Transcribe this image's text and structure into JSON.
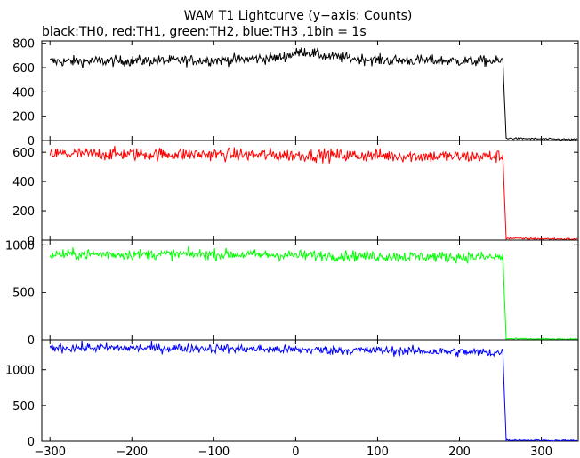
{
  "title": "WAM T1 Lightcurve (y−axis: Counts)",
  "subtitle": "black:TH0, red:TH1, green:TH2, blue:TH3 ,1bin = 1s",
  "chart_data": [
    {
      "type": "line",
      "series": [
        {
          "name": "TH0",
          "color": "#000000"
        }
      ],
      "xlim": [
        -310,
        345
      ],
      "ylim": [
        0,
        820
      ],
      "yticks": [
        0,
        200,
        400,
        600,
        800
      ],
      "ytick_labels": [
        "0",
        "200",
        "400",
        "600",
        "800"
      ],
      "level_profile": [
        [
          -300,
          650
        ],
        [
          -200,
          655
        ],
        [
          -100,
          660
        ],
        [
          -20,
          680
        ],
        [
          10,
          735
        ],
        [
          40,
          690
        ],
        [
          100,
          662
        ],
        [
          200,
          655
        ],
        [
          250,
          652
        ],
        [
          253,
          652
        ],
        [
          257,
          18
        ],
        [
          345,
          8
        ]
      ],
      "noise": 22
    },
    {
      "type": "line",
      "series": [
        {
          "name": "TH1",
          "color": "#ff0000"
        }
      ],
      "xlim": [
        -310,
        345
      ],
      "ylim": [
        0,
        680
      ],
      "yticks": [
        0,
        200,
        400,
        600
      ],
      "ytick_labels": [
        "0",
        "200",
        "400",
        "600"
      ],
      "level_profile": [
        [
          -300,
          590
        ],
        [
          -100,
          585
        ],
        [
          0,
          580
        ],
        [
          100,
          578
        ],
        [
          200,
          570
        ],
        [
          253,
          572
        ],
        [
          257,
          12
        ],
        [
          345,
          6
        ]
      ],
      "noise": 22
    },
    {
      "type": "line",
      "series": [
        {
          "name": "TH2",
          "color": "#00ff00"
        }
      ],
      "xlim": [
        -310,
        345
      ],
      "ylim": [
        0,
        1050
      ],
      "yticks": [
        0,
        500,
        1000
      ],
      "ytick_labels": [
        "0",
        "500",
        "1000"
      ],
      "level_profile": [
        [
          -300,
          900
        ],
        [
          -100,
          900
        ],
        [
          0,
          890
        ],
        [
          100,
          880
        ],
        [
          200,
          872
        ],
        [
          253,
          870
        ],
        [
          257,
          12
        ],
        [
          345,
          6
        ]
      ],
      "noise": 28
    },
    {
      "type": "line",
      "series": [
        {
          "name": "TH3",
          "color": "#0000ff"
        }
      ],
      "xlim": [
        -310,
        345
      ],
      "ylim": [
        0,
        1420
      ],
      "yticks": [
        0,
        500,
        1000
      ],
      "ytick_labels": [
        "0",
        "500",
        "1000"
      ],
      "level_profile": [
        [
          -300,
          1310
        ],
        [
          -100,
          1300
        ],
        [
          0,
          1280
        ],
        [
          100,
          1270
        ],
        [
          200,
          1250
        ],
        [
          253,
          1240
        ],
        [
          257,
          15
        ],
        [
          345,
          8
        ]
      ],
      "noise": 32
    }
  ],
  "xticks": [
    -300,
    -200,
    -100,
    0,
    100,
    200,
    300
  ],
  "xtick_labels": [
    "−300",
    "−200",
    "−100",
    "0",
    "100",
    "200",
    "300"
  ]
}
